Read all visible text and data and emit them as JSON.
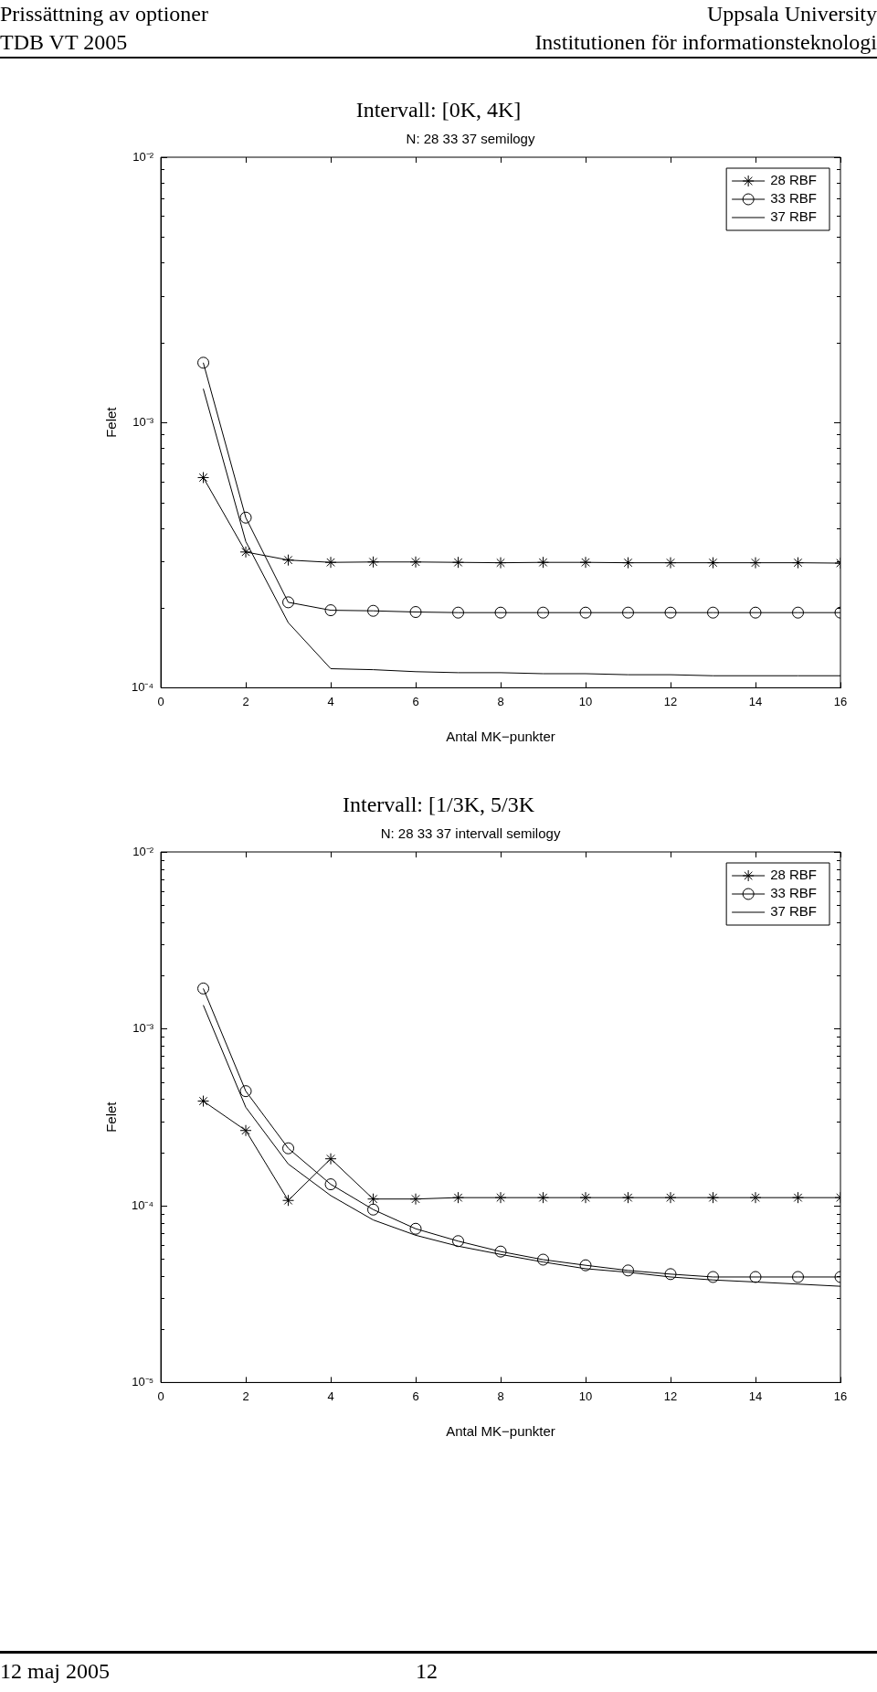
{
  "chart_data": [
    {
      "type": "line",
      "title": "Intervall: [0K, 4K]",
      "subtitle": "N: 28 33 37 semilogy",
      "xlabel": "Antal MK−punkter",
      "ylabel": "Felet",
      "annotations": [
        "Prissättning av optioner",
        "Uppsala University",
        "TDB VT 2005",
        "Institutionen för informationsteknologi"
      ],
      "x": [
        1,
        2,
        3,
        4,
        5,
        6,
        7,
        8,
        9,
        10,
        11,
        12,
        13,
        14,
        15,
        16
      ],
      "series": [
        {
          "name": "28 RBF",
          "color": "#000000",
          "marker": "cross",
          "values": [
            0.00062,
            0.000325,
            0.000303,
            0.000297,
            0.000298,
            0.000298,
            0.000297,
            0.000296,
            0.000297,
            0.000297,
            0.000296,
            0.000296,
            0.000296,
            0.000296,
            0.000296,
            0.000295
          ]
        },
        {
          "name": "33 RBF",
          "color": "#000000",
          "marker": "circle",
          "values": [
            0.00168,
            0.000438,
            0.00021,
            0.000196,
            0.000195,
            0.000193,
            0.000192,
            0.000192,
            0.000192,
            0.000192,
            0.000192,
            0.000192,
            0.000192,
            0.000192,
            0.000192,
            0.000192
          ]
        },
        {
          "name": "37 RBF",
          "color": "#000000",
          "marker": "none",
          "values": [
            0.00134,
            0.000356,
            0.000176,
            0.000118,
            0.000117,
            0.000115,
            0.000114,
            0.000114,
            0.000113,
            0.000113,
            0.000112,
            0.000112,
            0.000111,
            0.000111,
            0.000111,
            0.000111
          ]
        }
      ],
      "xlim": [
        0,
        16
      ],
      "xticks": [
        0,
        2,
        4,
        6,
        8,
        10,
        12,
        14,
        16
      ],
      "log": "y",
      "ylim": [
        0.0001,
        0.01
      ],
      "yticks": [
        {
          "value": 0.0001,
          "label": "10⁻⁴"
        },
        {
          "value": 0.0002,
          "label": null
        },
        {
          "value": 0.0003,
          "label": null
        },
        {
          "value": 0.0004,
          "label": null
        },
        {
          "value": 0.0005,
          "label": null
        },
        {
          "value": 0.0006,
          "label": null
        },
        {
          "value": 0.0007,
          "label": null
        },
        {
          "value": 0.0008,
          "label": null
        },
        {
          "value": 0.0009,
          "label": null
        },
        {
          "value": 0.001,
          "label": "10⁻³"
        },
        {
          "value": 0.002,
          "label": null
        },
        {
          "value": 0.003,
          "label": null
        },
        {
          "value": 0.004,
          "label": null
        },
        {
          "value": 0.005,
          "label": null
        },
        {
          "value": 0.006,
          "label": null
        },
        {
          "value": 0.007,
          "label": null
        },
        {
          "value": 0.008,
          "label": null
        },
        {
          "value": 0.009,
          "label": null
        },
        {
          "value": 0.01,
          "label": "10⁻²"
        }
      ],
      "legend": "top right"
    },
    {
      "type": "line",
      "title": "Intervall: [1/3K, 5/3K",
      "subtitle": "N: 28 33 37 intervall semilogy",
      "xlabel": "Antal MK−punkter",
      "ylabel": "Felet",
      "annotations": [
        "12 maj 2005",
        "12"
      ],
      "x": [
        1,
        2,
        3,
        4,
        5,
        6,
        7,
        8,
        9,
        10,
        11,
        12,
        13,
        14,
        15,
        16
      ],
      "series": [
        {
          "name": "28 RBF",
          "color": "#000000",
          "marker": "cross",
          "values": [
            0.00039,
            0.000266,
            0.000107,
            0.000184,
            0.000109,
            0.000109,
            0.000111,
            0.000111,
            0.000111,
            0.000111,
            0.000111,
            0.000111,
            0.000111,
            0.000111,
            0.000111,
            0.000111
          ]
        },
        {
          "name": "33 RBF",
          "color": "#000000",
          "marker": "circle",
          "values": [
            0.00169,
            0.000444,
            0.000211,
            0.000132,
            9.5e-05,
            7.4e-05,
            6.3e-05,
            5.5e-05,
            4.95e-05,
            4.6e-05,
            4.3e-05,
            4.1e-05,
            3.95e-05,
            3.95e-05,
            3.95e-05,
            3.95e-05
          ]
        },
        {
          "name": "37 RBF",
          "color": "#000000",
          "marker": "none",
          "values": [
            0.00136,
            0.00036,
            0.000172,
            0.000114,
            8.3e-05,
            6.8e-05,
            5.9e-05,
            5.3e-05,
            4.8e-05,
            4.4e-05,
            4.2e-05,
            3.95e-05,
            3.8e-05,
            3.7e-05,
            3.6e-05,
            3.5e-05
          ]
        }
      ],
      "xlim": [
        0,
        16
      ],
      "xticks": [
        0,
        2,
        4,
        6,
        8,
        10,
        12,
        14,
        16
      ],
      "log": "y",
      "ylim": [
        1e-05,
        0.01
      ],
      "yticks": [
        {
          "value": 1e-05,
          "label": "10⁻⁵"
        },
        {
          "value": 2e-05,
          "label": null
        },
        {
          "value": 3e-05,
          "label": null
        },
        {
          "value": 4e-05,
          "label": null
        },
        {
          "value": 5e-05,
          "label": null
        },
        {
          "value": 6e-05,
          "label": null
        },
        {
          "value": 7e-05,
          "label": null
        },
        {
          "value": 8e-05,
          "label": null
        },
        {
          "value": 9e-05,
          "label": null
        },
        {
          "value": 0.0001,
          "label": "10⁻⁴"
        },
        {
          "value": 0.0002,
          "label": null
        },
        {
          "value": 0.0003,
          "label": null
        },
        {
          "value": 0.0004,
          "label": null
        },
        {
          "value": 0.0005,
          "label": null
        },
        {
          "value": 0.0006,
          "label": null
        },
        {
          "value": 0.0007,
          "label": null
        },
        {
          "value": 0.0008,
          "label": null
        },
        {
          "value": 0.0009,
          "label": null
        },
        {
          "value": 0.001,
          "label": "10⁻³"
        },
        {
          "value": 0.002,
          "label": null
        },
        {
          "value": 0.003,
          "label": null
        },
        {
          "value": 0.004,
          "label": null
        },
        {
          "value": 0.005,
          "label": null
        },
        {
          "value": 0.006,
          "label": null
        },
        {
          "value": 0.007,
          "label": null
        },
        {
          "value": 0.008,
          "label": null
        },
        {
          "value": 0.009,
          "label": null
        },
        {
          "value": 0.01,
          "label": "10⁻²"
        }
      ],
      "legend": "top right"
    }
  ]
}
